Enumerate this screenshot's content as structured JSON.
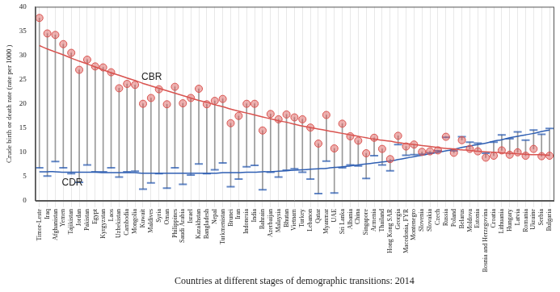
{
  "chart_data": {
    "type": "dumbbell",
    "x_label": "Countries at different stages of demographic transitions: 2014",
    "y_label": "Crude birth or death rate (rate per 1000 )",
    "categories": [
      "Timor-Leste",
      "Iraq",
      "Afghanistan",
      "Yemen",
      "Tajikistan",
      "Jordan",
      "Pakistan",
      "Egypt",
      "Kyrgyzstan",
      "Laos",
      "Uzbekistan",
      "Cambodia",
      "Mongolia",
      "Kuwait",
      "Maldives",
      "Syria",
      "Oman",
      "Philippines",
      "Saudi Arabia",
      "Israel",
      "Kazakhstan",
      "Bangladesh",
      "Nepal",
      "Turkmenistan",
      "Brunei",
      "Iran",
      "Indonesia",
      "India",
      "Bahrain",
      "Azerbaijan",
      "Malaysia",
      "Bhutan",
      "Vietnam",
      "Turkey",
      "Lebanon",
      "Qatar",
      "Myanmar",
      "UAE",
      "Sri Lanka",
      "Albania",
      "China",
      "Singapore",
      "Armenia",
      "Thailand",
      "Hong Kong SAR",
      "Georgia",
      "Macedonia, FYR",
      "Montenegro",
      "Slovenia",
      "Slovakia",
      "Czech",
      "Russia",
      "Poland",
      "Belarus",
      "Moldova",
      "Estonia",
      "Bosnia and Herzegovina",
      "Croatia",
      "Lithuania",
      "Hungary",
      "Latvia",
      "Romania",
      "Ukraine",
      "Serbia",
      "Bulgaria"
    ],
    "series": [
      {
        "name": "CBR",
        "color": "#d9534f",
        "marker": "circle",
        "values": [
          37.7,
          34.5,
          34.2,
          32.3,
          30.5,
          27.0,
          29.1,
          27.7,
          27.5,
          26.5,
          23.2,
          24.1,
          23.9,
          20.0,
          21.2,
          23.0,
          19.9,
          23.5,
          20.1,
          21.2,
          23.1,
          19.9,
          20.6,
          21.0,
          16.0,
          17.5,
          20.0,
          20.0,
          14.5,
          17.9,
          16.8,
          17.8,
          17.2,
          16.8,
          15.1,
          11.8,
          17.7,
          10.8,
          15.9,
          13.3,
          12.4,
          9.8,
          13.0,
          10.7,
          8.6,
          13.4,
          11.2,
          11.6,
          10.1,
          10.2,
          10.4,
          13.2,
          9.9,
          12.5,
          10.7,
          10.2,
          8.9,
          9.3,
          10.4,
          9.5,
          10.0,
          9.3,
          10.7,
          9.2,
          9.3
        ],
        "trend": [
          32.0,
          31.3,
          30.7,
          30.1,
          29.4,
          28.8,
          28.2,
          27.6,
          27.0,
          26.4,
          25.9,
          25.3,
          24.8,
          24.2,
          23.7,
          23.2,
          22.7,
          22.2,
          21.7,
          21.2,
          20.7,
          20.3,
          19.8,
          19.4,
          18.9,
          18.5,
          18.1,
          17.7,
          17.3,
          16.9,
          16.5,
          16.2,
          15.8,
          15.4,
          15.1,
          14.8,
          14.5,
          14.2,
          13.9,
          13.6,
          13.3,
          13.0,
          12.7,
          12.5,
          12.3,
          12.0,
          11.8,
          11.6,
          11.4,
          11.2,
          11.0,
          10.8,
          10.7,
          10.5,
          10.4,
          10.2,
          10.1,
          10.0,
          9.9,
          9.8,
          9.7,
          9.6,
          9.5,
          9.5,
          9.4
        ]
      },
      {
        "name": "CDR",
        "color": "#2f5fb3",
        "marker": "dash",
        "values": [
          6.8,
          5.1,
          8.1,
          6.8,
          5.6,
          3.8,
          7.4,
          6.0,
          6.0,
          6.8,
          4.9,
          6.0,
          6.1,
          2.4,
          3.7,
          5.6,
          2.6,
          6.8,
          3.4,
          5.3,
          7.6,
          5.6,
          6.4,
          7.8,
          2.9,
          4.5,
          7.0,
          7.3,
          2.3,
          5.9,
          4.9,
          6.3,
          6.6,
          5.9,
          4.5,
          1.5,
          8.2,
          1.6,
          6.8,
          7.4,
          7.2,
          4.6,
          9.3,
          7.4,
          6.2,
          11.6,
          9.4,
          9.5,
          9.6,
          9.9,
          10.3,
          13.1,
          10.3,
          13.2,
          12.1,
          11.9,
          9.8,
          12.1,
          13.6,
          12.8,
          14.2,
          12.5,
          14.6,
          13.7,
          14.9
        ],
        "trend": [
          6.0,
          6.0,
          6.0,
          5.9,
          5.9,
          5.9,
          5.9,
          5.9,
          5.8,
          5.8,
          5.8,
          5.8,
          5.8,
          5.7,
          5.7,
          5.7,
          5.7,
          5.7,
          5.7,
          5.7,
          5.7,
          5.7,
          5.7,
          5.8,
          5.8,
          5.8,
          5.9,
          5.9,
          6.0,
          6.0,
          6.1,
          6.2,
          6.3,
          6.4,
          6.5,
          6.6,
          6.7,
          6.9,
          7.0,
          7.2,
          7.4,
          7.6,
          7.8,
          8.0,
          8.2,
          8.5,
          8.8,
          9.1,
          9.4,
          9.7,
          10.0,
          10.3,
          10.6,
          11.0,
          11.3,
          11.6,
          11.9,
          12.3,
          12.6,
          13.0,
          13.3,
          13.6,
          13.9,
          14.3,
          14.6
        ]
      }
    ],
    "ylim": [
      0,
      40
    ],
    "yticks": [
      0,
      5,
      10,
      15,
      20,
      25,
      30,
      35,
      40
    ],
    "grid": true
  }
}
